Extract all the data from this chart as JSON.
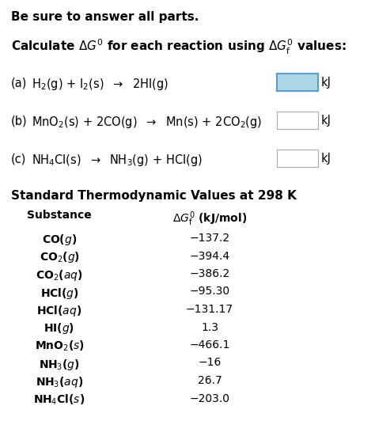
{
  "bg_color": "#ffffff",
  "header": "Be sure to answer all parts.",
  "values_display": [
    "−137.2",
    "−394.4",
    "−386.2",
    "−95.30",
    "−131.17",
    "1.3",
    "−466.1",
    "−16",
    "26.7",
    "−203.0"
  ],
  "box_a_color": "#add8e6",
  "box_a_edge": "#5b9bd5",
  "box_b_edge": "#aaaaaa",
  "box_c_edge": "#aaaaaa"
}
